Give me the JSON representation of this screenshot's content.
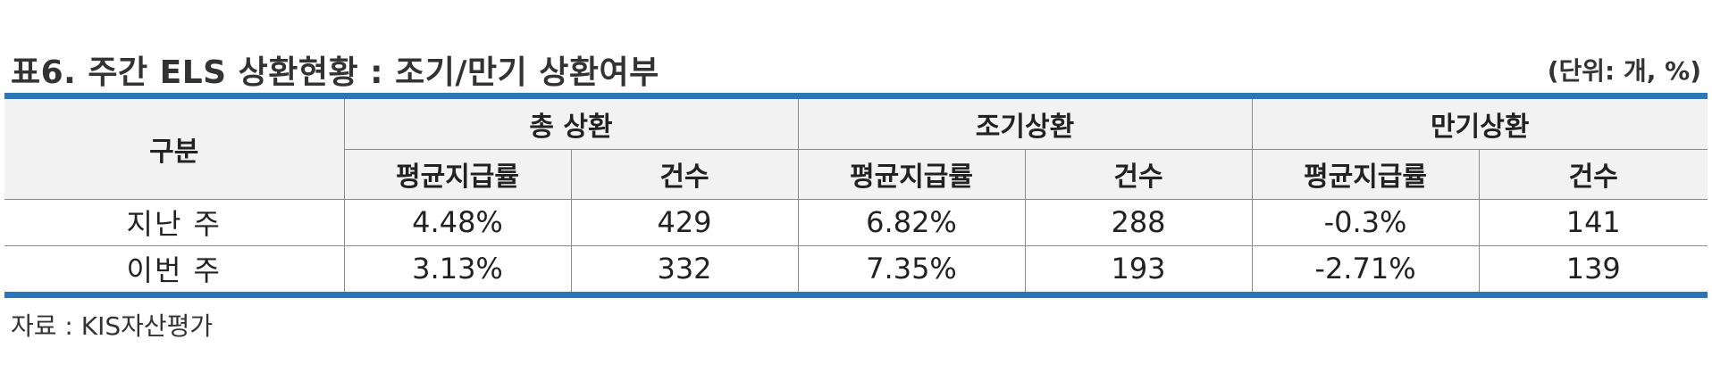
{
  "title": "표6. 주간 ELS 상환현황 : 조기/만기 상환여부",
  "unit": "(단위: 개, %)",
  "table": {
    "row_header": "구분",
    "groups": [
      {
        "label": "총 상환",
        "sub": [
          "평균지급률",
          "건수"
        ]
      },
      {
        "label": "조기상환",
        "sub": [
          "평균지급률",
          "건수"
        ]
      },
      {
        "label": "만기상환",
        "sub": [
          "평균지급률",
          "건수"
        ]
      }
    ],
    "rows": [
      {
        "label": "지난 주",
        "cells": [
          "4.48%",
          "429",
          "6.82%",
          "288",
          "-0.3%",
          "141"
        ]
      },
      {
        "label": "이번 주",
        "cells": [
          "3.13%",
          "332",
          "7.35%",
          "193",
          "-2.71%",
          "139"
        ]
      }
    ]
  },
  "source": "자료 : KIS자산평가",
  "colors": {
    "accent_rule": "#2e75b6",
    "header_bg": "#f2f2f2"
  }
}
